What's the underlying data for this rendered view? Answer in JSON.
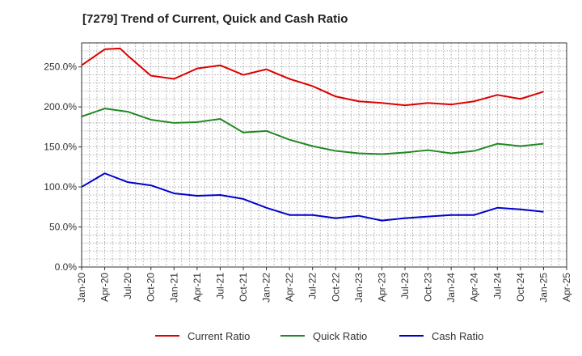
{
  "chart_data": {
    "type": "line",
    "title": "[7279]  Trend of Current, Quick and Cash Ratio",
    "xlabel": "",
    "ylabel": "",
    "ylim": [
      0,
      280
    ],
    "yticks": [
      "0.0%",
      "50.0%",
      "100.0%",
      "150.0%",
      "200.0%",
      "250.0%"
    ],
    "ytick_values": [
      0,
      50,
      100,
      150,
      200,
      250
    ],
    "categories": [
      "Jan-20",
      "Apr-20",
      "Jul-20",
      "Oct-20",
      "Jan-21",
      "Apr-21",
      "Jul-21",
      "Oct-21",
      "Jan-22",
      "Apr-22",
      "Jul-22",
      "Oct-22",
      "Jan-23",
      "Apr-23",
      "Jul-23",
      "Oct-23",
      "Jan-24",
      "Apr-24",
      "Jul-24",
      "Oct-24",
      "Jan-25",
      "Apr-25"
    ],
    "x_values": [
      0,
      3,
      6,
      9,
      12,
      15,
      18,
      21,
      24,
      27,
      30,
      33,
      36,
      39,
      42,
      45,
      48,
      51,
      54,
      57,
      60,
      63
    ],
    "grid": true,
    "legend_position": "bottom",
    "series": [
      {
        "name": "Current Ratio",
        "color": "#dd0000",
        "x": [
          0,
          3,
          5,
          6,
          9,
          12,
          15,
          18,
          21,
          24,
          27,
          30,
          33,
          36,
          39,
          42,
          45,
          48,
          51,
          54,
          57,
          60
        ],
        "values": [
          252,
          272,
          273,
          264,
          239,
          235,
          248,
          252,
          240,
          247,
          235,
          226,
          213,
          207,
          205,
          202,
          205,
          203,
          207,
          215,
          210,
          219
        ]
      },
      {
        "name": "Quick Ratio",
        "color": "#228822",
        "x": [
          0,
          3,
          6,
          9,
          12,
          15,
          18,
          21,
          24,
          27,
          30,
          33,
          36,
          39,
          42,
          45,
          48,
          51,
          54,
          57,
          60
        ],
        "values": [
          188,
          198,
          194,
          184,
          180,
          181,
          185,
          168,
          170,
          159,
          151,
          145,
          142,
          141,
          143,
          146,
          142,
          145,
          154,
          151,
          154
        ]
      },
      {
        "name": "Cash Ratio",
        "color": "#0000cc",
        "x": [
          0,
          3,
          6,
          9,
          12,
          15,
          18,
          21,
          24,
          27,
          30,
          33,
          36,
          39,
          42,
          45,
          48,
          51,
          54,
          57,
          60
        ],
        "values": [
          100,
          117,
          106,
          102,
          92,
          89,
          90,
          85,
          74,
          65,
          65,
          61,
          64,
          58,
          61,
          63,
          65,
          65,
          74,
          72,
          69
        ]
      }
    ]
  }
}
